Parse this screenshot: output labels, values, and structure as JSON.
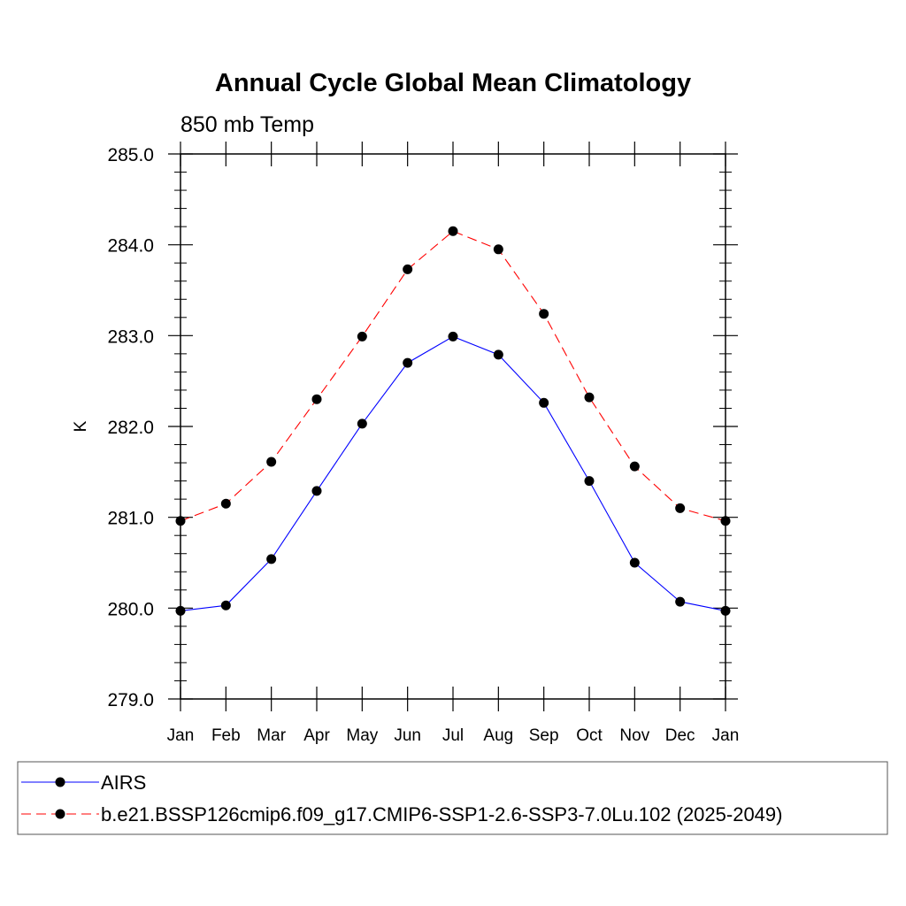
{
  "chart_data": {
    "type": "line",
    "title": "Annual Cycle Global Mean Climatology",
    "subtitle": "850 mb Temp",
    "xlabel": "",
    "ylabel": "K",
    "ylim": [
      279.0,
      285.0
    ],
    "yticks": [
      "279.0",
      "280.0",
      "281.0",
      "282.0",
      "283.0",
      "284.0",
      "285.0"
    ],
    "categories": [
      "Jan",
      "Feb",
      "Mar",
      "Apr",
      "May",
      "Jun",
      "Jul",
      "Aug",
      "Sep",
      "Oct",
      "Nov",
      "Dec",
      "Jan"
    ],
    "grid": false,
    "legend_position": "bottom",
    "series": [
      {
        "name": "AIRS",
        "color": "#0000ff",
        "dashed": false,
        "values": [
          279.97,
          280.03,
          280.54,
          281.29,
          282.03,
          282.7,
          282.99,
          282.79,
          282.26,
          281.4,
          280.5,
          280.07,
          279.97
        ]
      },
      {
        "name": "b.e21.BSSP126cmip6.f09_g17.CMIP6-SSP1-2.6-SSP3-7.0Lu.102 (2025-2049)",
        "color": "#ff0000",
        "dashed": true,
        "values": [
          280.96,
          281.15,
          281.61,
          282.3,
          282.99,
          283.73,
          284.15,
          283.95,
          283.24,
          282.32,
          281.56,
          281.1,
          280.96
        ]
      }
    ]
  }
}
